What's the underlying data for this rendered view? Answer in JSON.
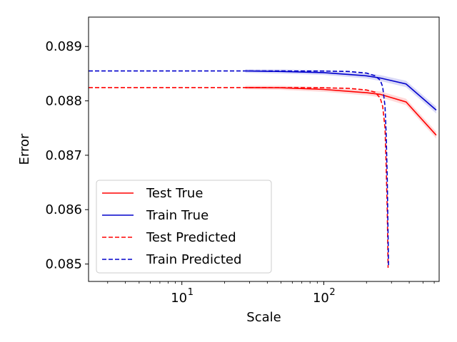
{
  "chart_data": {
    "type": "line",
    "title": "",
    "xlabel": "Scale",
    "ylabel": "Error",
    "xscale": "log",
    "xlim": [
      2.2,
      650
    ],
    "ylim": [
      0.08468,
      0.08954
    ],
    "xticks": [
      {
        "value": 10,
        "label": "10",
        "exp": "1"
      },
      {
        "value": 100,
        "label": "10",
        "exp": "2"
      }
    ],
    "yticks": [
      {
        "value": 0.085,
        "label": "0.085"
      },
      {
        "value": 0.086,
        "label": "0.086"
      },
      {
        "value": 0.087,
        "label": "0.087"
      },
      {
        "value": 0.088,
        "label": "0.088"
      },
      {
        "value": 0.089,
        "label": "0.089"
      }
    ],
    "grid": false,
    "legend": "lower-left",
    "series": [
      {
        "name": "Test True",
        "color": "#ff0000",
        "style": "solid",
        "band": true,
        "x": [
          28,
          50,
          100,
          200,
          250,
          380,
          620
        ],
        "y": [
          0.088245,
          0.08824,
          0.08821,
          0.08815,
          0.08812,
          0.08798,
          0.08737
        ]
      },
      {
        "name": "Train True",
        "color": "#0000cc",
        "style": "solid",
        "band": true,
        "x": [
          28,
          50,
          100,
          200,
          250,
          380,
          620
        ],
        "y": [
          0.08855,
          0.08854,
          0.08852,
          0.08846,
          0.08842,
          0.08831,
          0.08783
        ]
      },
      {
        "name": "Test Predicted",
        "color": "#ff0000",
        "style": "dashed",
        "x": [
          2.2,
          10,
          50,
          100,
          150,
          200,
          230,
          250,
          260,
          270,
          275,
          280,
          284
        ],
        "y": [
          0.088245,
          0.088245,
          0.088243,
          0.08824,
          0.08823,
          0.0882,
          0.08816,
          0.08805,
          0.0879,
          0.0875,
          0.0868,
          0.086,
          0.08493
        ]
      },
      {
        "name": "Train Predicted",
        "color": "#0000cc",
        "style": "dashed",
        "x": [
          2.2,
          10,
          50,
          100,
          150,
          200,
          230,
          250,
          260,
          270,
          275,
          280,
          286
        ],
        "y": [
          0.08855,
          0.08855,
          0.08855,
          0.088548,
          0.08854,
          0.08851,
          0.08846,
          0.08838,
          0.08826,
          0.0879,
          0.0874,
          0.0866,
          0.08498
        ]
      }
    ]
  }
}
